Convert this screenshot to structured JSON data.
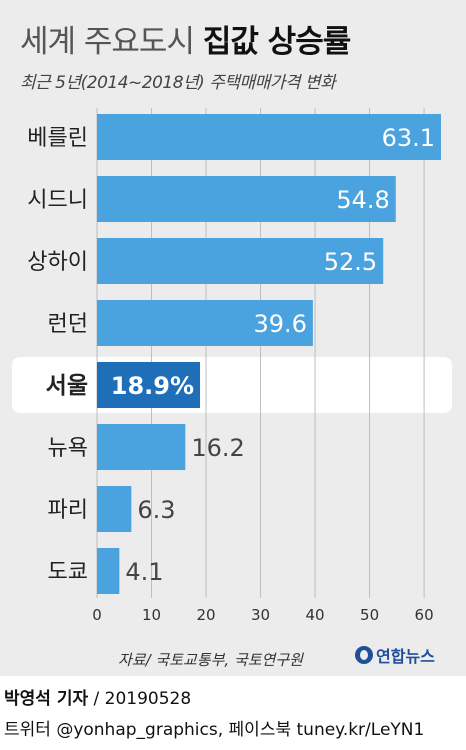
{
  "title_plain": "세계 주요도시",
  "title_bold": "집값 상승률",
  "subtitle": "최근 5년(2014~2018년) 주택매매가격 변화",
  "source": "자료/ 국토교통부, 국토연구원",
  "logo_text": "연합뉴스",
  "byline": {
    "author": "박영석 기자",
    "date": "/ 20190528",
    "contact": "트위터 @yonhap_graphics, 페이스북 tuney.kr/LeYN1"
  },
  "colors": {
    "bar": "#4aa3df",
    "highlight_bar": "#1f6fb8",
    "highlight_row": "#ffffff"
  },
  "chart_data": {
    "type": "bar",
    "orientation": "horizontal",
    "categories": [
      "베를린",
      "시드니",
      "상하이",
      "런던",
      "서울",
      "뉴욕",
      "파리",
      "도쿄"
    ],
    "values": [
      63.1,
      54.8,
      52.5,
      39.6,
      18.9,
      16.2,
      6.3,
      4.1
    ],
    "value_labels": [
      "63.1",
      "54.8",
      "52.5",
      "39.6",
      "18.9%",
      "16.2",
      "6.3",
      "4.1"
    ],
    "highlight": "서울",
    "xlim": [
      0,
      63.1
    ],
    "xticks": [
      "0",
      "10",
      "20",
      "30",
      "40",
      "50",
      "60"
    ],
    "xtick_values": [
      0,
      10,
      20,
      30,
      40,
      50,
      60
    ],
    "grid": "vertical"
  }
}
